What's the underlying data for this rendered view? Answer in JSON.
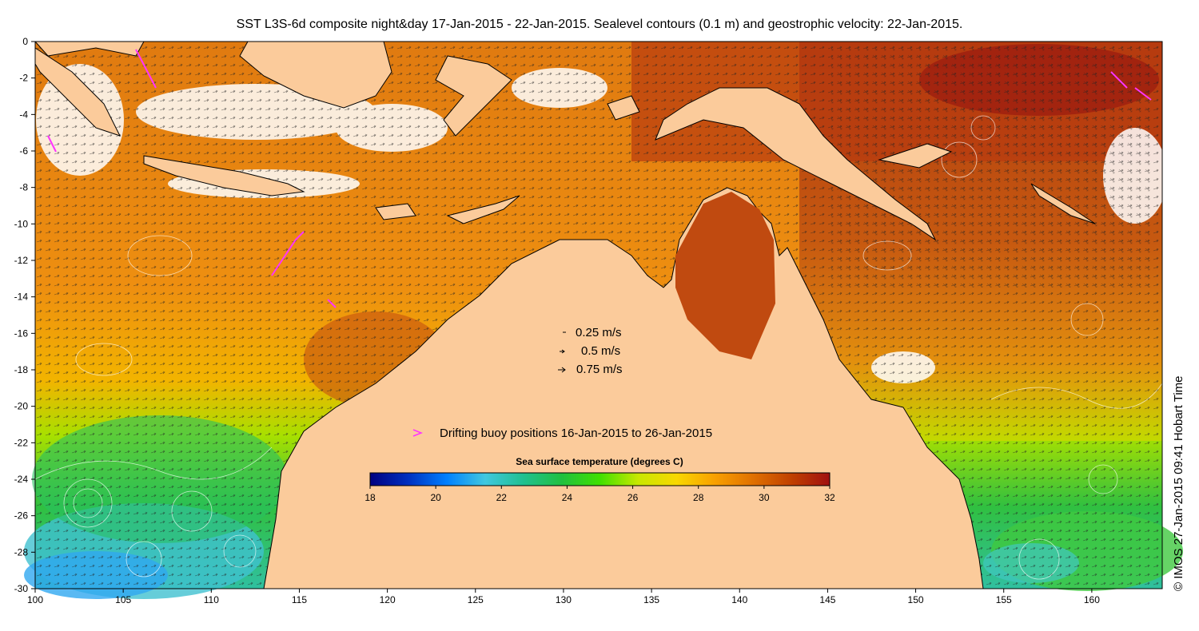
{
  "title": "SST L3S-6d composite night&day 17-Jan-2015 - 22-Jan-2015. Sealevel contours (0.1 m) and geostrophic velocity: 22-Jan-2015.",
  "credit": "© IMOS 27-Jan-2015 09:41 Hobart Time",
  "axes": {
    "x": {
      "min": 100,
      "max": 164,
      "ticks": [
        100,
        105,
        110,
        115,
        120,
        125,
        130,
        135,
        140,
        145,
        150,
        155,
        160
      ]
    },
    "y": {
      "min": -30,
      "max": 0,
      "ticks": [
        0,
        -2,
        -4,
        -6,
        -8,
        -10,
        -12,
        -14,
        -16,
        -18,
        -20,
        -22,
        -24,
        -26,
        -28,
        -30
      ]
    }
  },
  "velocity_legend": [
    {
      "label": "0.25 m/s"
    },
    {
      "label": "0.5 m/s"
    },
    {
      "label": "0.75 m/s"
    }
  ],
  "buoy_legend": {
    "label": "Drifting buoy positions 16-Jan-2015 to 26-Jan-2015",
    "color": "#ff33ff"
  },
  "colorbar": {
    "title": "Sea surface temperature (degrees C)",
    "min": 18,
    "max": 32,
    "ticks": [
      "18",
      "20",
      "22",
      "24",
      "26",
      "28",
      "30",
      "32"
    ],
    "colors": [
      "#000080",
      "#0030c0",
      "#0080ff",
      "#40c8e0",
      "#20c090",
      "#20c040",
      "#40e000",
      "#c8e800",
      "#f8d800",
      "#f8a000",
      "#e07000",
      "#c04000",
      "#a01010"
    ]
  },
  "colors": {
    "land": "#fbcb9b",
    "coast": "#000000"
  }
}
